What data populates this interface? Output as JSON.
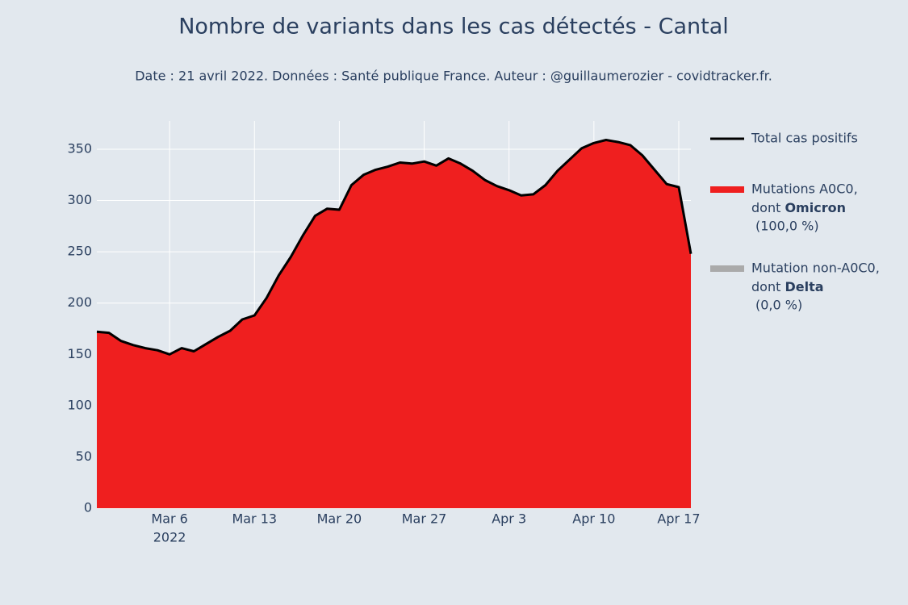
{
  "chart_data": {
    "type": "area",
    "title": "Nombre de variants dans les cas détectés - Cantal",
    "subtitle": "Date : 21 avril 2022. Données : Santé publique France. Auteur : @guillaumerozier - covidtracker.fr.",
    "x": [
      "2022-02-28",
      "2022-03-01",
      "2022-03-02",
      "2022-03-03",
      "2022-03-04",
      "2022-03-05",
      "2022-03-06",
      "2022-03-07",
      "2022-03-08",
      "2022-03-09",
      "2022-03-10",
      "2022-03-11",
      "2022-03-12",
      "2022-03-13",
      "2022-03-14",
      "2022-03-15",
      "2022-03-16",
      "2022-03-17",
      "2022-03-18",
      "2022-03-19",
      "2022-03-20",
      "2022-03-21",
      "2022-03-22",
      "2022-03-23",
      "2022-03-24",
      "2022-03-25",
      "2022-03-26",
      "2022-03-27",
      "2022-03-28",
      "2022-03-29",
      "2022-03-30",
      "2022-03-31",
      "2022-04-01",
      "2022-04-02",
      "2022-04-03",
      "2022-04-04",
      "2022-04-05",
      "2022-04-06",
      "2022-04-07",
      "2022-04-08",
      "2022-04-09",
      "2022-04-10",
      "2022-04-11",
      "2022-04-12",
      "2022-04-13",
      "2022-04-14",
      "2022-04-15",
      "2022-04-16",
      "2022-04-17",
      "2022-04-18"
    ],
    "series": [
      {
        "name_lines": [
          "Mutations A0C0,",
          "dont Omicron",
          "(100,0 %)"
        ],
        "bold": "Omicron",
        "color": "#ef1f1f",
        "kind": "area",
        "values": [
          172,
          171,
          163,
          159,
          156,
          154,
          150,
          156,
          153,
          160,
          167,
          173,
          184,
          188,
          205,
          227,
          245,
          266,
          285,
          292,
          291,
          315,
          325,
          330,
          333,
          337,
          336,
          338,
          334,
          341,
          336,
          329,
          320,
          314,
          310,
          305,
          306,
          315,
          329,
          340,
          351,
          356,
          359,
          357,
          354,
          344,
          330,
          316,
          313,
          248
        ]
      },
      {
        "name_lines": [
          "Mutation non-A0C0,",
          "dont Delta",
          "(0,0 %)"
        ],
        "bold": "Delta",
        "color": "#aaaaaa",
        "kind": "area",
        "values": [
          0,
          0,
          0,
          0,
          0,
          0,
          0,
          0,
          0,
          0,
          0,
          0,
          0,
          0,
          0,
          0,
          0,
          0,
          0,
          0,
          0,
          0,
          0,
          0,
          0,
          0,
          0,
          0,
          0,
          0,
          0,
          0,
          0,
          0,
          0,
          0,
          0,
          0,
          0,
          0,
          0,
          0,
          0,
          0,
          0,
          0,
          0,
          0,
          0,
          0
        ]
      },
      {
        "name_lines": [
          "Total cas positifs"
        ],
        "color": "#000000",
        "kind": "line",
        "values": [
          172,
          171,
          163,
          159,
          156,
          154,
          150,
          156,
          153,
          160,
          167,
          173,
          184,
          188,
          205,
          227,
          245,
          266,
          285,
          292,
          291,
          315,
          325,
          330,
          333,
          337,
          336,
          338,
          334,
          341,
          336,
          329,
          320,
          314,
          310,
          305,
          306,
          315,
          329,
          340,
          351,
          356,
          359,
          357,
          354,
          344,
          330,
          316,
          313,
          248
        ]
      }
    ],
    "legend_order": [
      2,
      0,
      1
    ],
    "xlim": [
      "2022-02-28",
      "2022-04-18"
    ],
    "xticks": [
      {
        "value": "2022-03-06",
        "label": "Mar 6",
        "sublabel": "2022"
      },
      {
        "value": "2022-03-13",
        "label": "Mar 13"
      },
      {
        "value": "2022-03-20",
        "label": "Mar 20"
      },
      {
        "value": "2022-03-27",
        "label": "Mar 27"
      },
      {
        "value": "2022-04-03",
        "label": "Apr 3"
      },
      {
        "value": "2022-04-10",
        "label": "Apr 10"
      },
      {
        "value": "2022-04-17",
        "label": "Apr 17"
      }
    ],
    "ylim": [
      0,
      377.5
    ],
    "yticks": [
      0,
      50,
      100,
      150,
      200,
      250,
      300,
      350
    ],
    "grid": true
  }
}
